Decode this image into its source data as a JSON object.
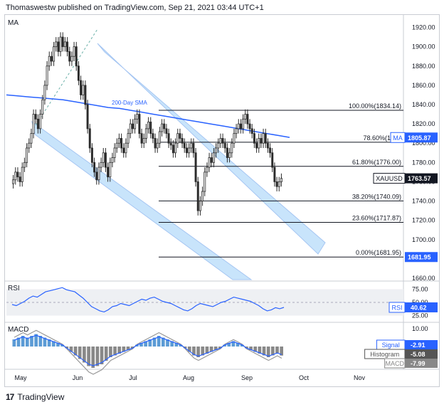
{
  "header": {
    "publisher": "Thomaswestw published on TradingView.com, Sep 21, 2021 03:44 UTC+1"
  },
  "footer": {
    "brand": "TradingView"
  },
  "panes": {
    "main_label": "MA",
    "rsi_label": "RSI",
    "macd_label": "MACD"
  },
  "colors": {
    "up": "#2b2b2b",
    "down": "#2b2b2b",
    "sma": "#2962ff",
    "channel_fill": "#bbdefb",
    "channel_stroke": "#90b8f0",
    "fib": "#131722",
    "hist_pos": "#5b9bd5",
    "hist_neg": "#888888",
    "macd": "#999999",
    "signal": "#2962ff",
    "rsi": "#2962ff"
  },
  "chart_data": {
    "type": "candlestick",
    "symbol": "XAUUSD",
    "y_axis": {
      "min": 1660,
      "max": 1930,
      "ticks": [
        1920,
        1900,
        1880,
        1860,
        1840,
        1820,
        1800,
        1780,
        1760,
        1740,
        1720,
        1700,
        1680,
        1660
      ]
    },
    "x_axis": {
      "labels": [
        "May",
        "Jun",
        "Jul",
        "Aug",
        "Sep",
        "Oct",
        "Nov"
      ]
    },
    "sma_label": "200-Day SMA",
    "fib_levels": [
      {
        "label": "100.00%(1834.14)",
        "value": 1834.14
      },
      {
        "label": "78.60%(1801",
        "value": 1801
      },
      {
        "label": "61.80%(1776.00)",
        "value": 1776.0
      },
      {
        "label": "38.20%(1740.09)",
        "value": 1740.09
      },
      {
        "label": "23.60%(1717.87)",
        "value": 1717.87
      },
      {
        "label": "0.00%(1681.95)",
        "value": 1681.95
      }
    ],
    "price_badges": [
      {
        "label": "MA",
        "value_text": "1805.87",
        "value": 1805.87,
        "color": "#2962ff"
      },
      {
        "label": "XAUUSD",
        "value_text": "1763.57",
        "value": 1763.57,
        "color": "#131722"
      },
      {
        "label": "",
        "value_text": "1681.95",
        "value": 1681.95,
        "color": "#2962ff"
      }
    ],
    "closes": [
      1762,
      1770,
      1765,
      1760,
      1775,
      1780,
      1795,
      1800,
      1810,
      1830,
      1825,
      1815,
      1830,
      1845,
      1860,
      1880,
      1890,
      1885,
      1900,
      1905,
      1895,
      1910,
      1900,
      1905,
      1895,
      1885,
      1890,
      1900,
      1880,
      1865,
      1850,
      1860,
      1840,
      1815,
      1795,
      1780,
      1770,
      1762,
      1775,
      1780,
      1790,
      1775,
      1765,
      1780,
      1785,
      1795,
      1800,
      1805,
      1795,
      1790,
      1800,
      1810,
      1820,
      1815,
      1825,
      1830,
      1810,
      1800,
      1805,
      1815,
      1822,
      1810,
      1805,
      1795,
      1800,
      1812,
      1820,
      1815,
      1810,
      1800,
      1798,
      1790,
      1800,
      1810,
      1805,
      1800,
      1795,
      1790,
      1795,
      1800,
      1790,
      1760,
      1730,
      1740,
      1750,
      1770,
      1775,
      1785,
      1780,
      1790,
      1795,
      1800,
      1805,
      1800,
      1795,
      1785,
      1790,
      1800,
      1810,
      1815,
      1820,
      1815,
      1825,
      1830,
      1820,
      1815,
      1810,
      1800,
      1795,
      1805,
      1800,
      1810,
      1800,
      1795,
      1790,
      1775,
      1760,
      1755,
      1760,
      1763.57
    ],
    "sma_series": [
      1850,
      1849,
      1848,
      1847,
      1846,
      1845,
      1843,
      1841,
      1839,
      1837,
      1836,
      1834,
      1832,
      1830,
      1828,
      1826,
      1824,
      1822,
      1820,
      1818,
      1816,
      1814,
      1812,
      1810,
      1808,
      1806
    ],
    "rsi": {
      "labels": [
        "75.00",
        "50.00",
        "25.00"
      ],
      "current": "40.62",
      "values": [
        46,
        44,
        48,
        52,
        58,
        62,
        60,
        65,
        70,
        72,
        74,
        76,
        78,
        74,
        72,
        70,
        64,
        58,
        50,
        42,
        38,
        34,
        32,
        36,
        42,
        44,
        48,
        46,
        44,
        48,
        52,
        56,
        54,
        58,
        60,
        56,
        52,
        50,
        48,
        44,
        40,
        36,
        34,
        38,
        44,
        48,
        46,
        44,
        42,
        46,
        50,
        52,
        56,
        60,
        58,
        56,
        54,
        52,
        48,
        44,
        38,
        34,
        36,
        40,
        38,
        40.62
      ]
    },
    "macd": {
      "labels": [
        "10.00",
        "0.00"
      ],
      "signal": "-2.91",
      "histogram": "-5.08",
      "macd": "-7.99",
      "hist_values": [
        4,
        5,
        6,
        5,
        6,
        7,
        6,
        5,
        4,
        3,
        2,
        1,
        -1,
        -3,
        -5,
        -7,
        -9,
        -11,
        -12,
        -11,
        -10,
        -8,
        -6,
        -5,
        -4,
        -3,
        -2,
        -1,
        1,
        2,
        3,
        4,
        5,
        6,
        5,
        4,
        3,
        2,
        1,
        -1,
        -3,
        -5,
        -6,
        -5,
        -4,
        -3,
        -2,
        -1,
        1,
        2,
        3,
        2,
        1,
        -1,
        -2,
        -3,
        -4,
        -5,
        -6,
        -5,
        -4,
        -5.08
      ]
    }
  }
}
